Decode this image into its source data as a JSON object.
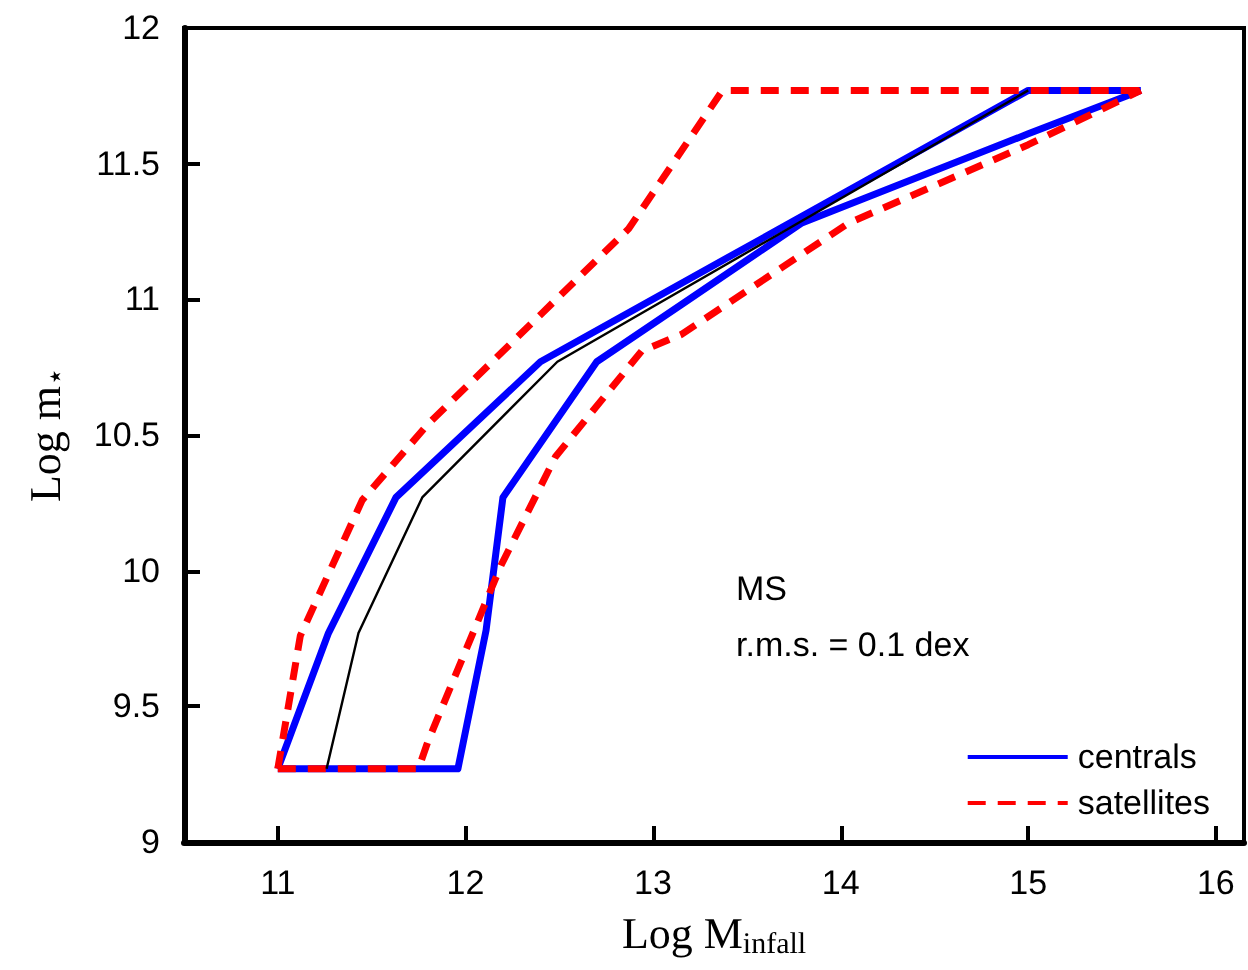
{
  "chart_data": {
    "type": "line",
    "xlabel": "Log M$_{infall}$",
    "ylabel": "Log m$_{⋆}$",
    "annotations": [
      "MS",
      "r.m.s. = 0.1 dex"
    ],
    "xlim": [
      10.5,
      16.15
    ],
    "xticks": [
      11,
      12,
      13,
      14,
      15,
      16
    ],
    "ylim": [
      9,
      12
    ],
    "yticks": [
      9,
      9.5,
      10,
      10.5,
      11,
      11.5,
      12
    ],
    "grid": false,
    "legend": "bottom right",
    "marker": "none",
    "series": [
      {
        "name": "centrals",
        "color": "#0000ff",
        "line_style": "solid",
        "x": [
          11.0,
          11.27,
          11.63,
          12.4,
          15.0,
          15.6
        ],
        "values": [
          9.27,
          9.77,
          10.27,
          10.77,
          11.77,
          11.77
        ]
      },
      {
        "color": "#0000ff",
        "line_style": "solid",
        "x": [
          11.0,
          11.96,
          12.11,
          12.2,
          12.7,
          13.15,
          13.79,
          15.0,
          15.6
        ],
        "values": [
          9.27,
          9.27,
          9.78,
          10.27,
          10.77,
          10.98,
          11.28,
          11.61,
          11.77
        ]
      },
      {
        "name": "satellites",
        "color": "#ff0000",
        "line_style": "dashed",
        "x": [
          11.0,
          11.12,
          11.45,
          11.8,
          12.41,
          12.87,
          13.37,
          15.6
        ],
        "values": [
          9.27,
          9.76,
          10.26,
          10.54,
          10.95,
          11.26,
          11.77,
          11.77
        ]
      },
      {
        "color": "#ff0000",
        "line_style": "dashed",
        "x": [
          11.0,
          11.75,
          11.8,
          12.19,
          12.48,
          12.94,
          13.15,
          14.04,
          15.0,
          15.6
        ],
        "values": [
          9.27,
          9.27,
          9.37,
          10.02,
          10.42,
          10.81,
          10.87,
          11.28,
          11.57,
          11.77
        ]
      },
      {
        "color": "#000000",
        "line_style": "solid",
        "x": [
          11.26,
          11.43,
          11.77,
          12.49,
          15.0
        ],
        "values": [
          9.27,
          9.77,
          10.27,
          10.77,
          11.77
        ]
      }
    ]
  }
}
